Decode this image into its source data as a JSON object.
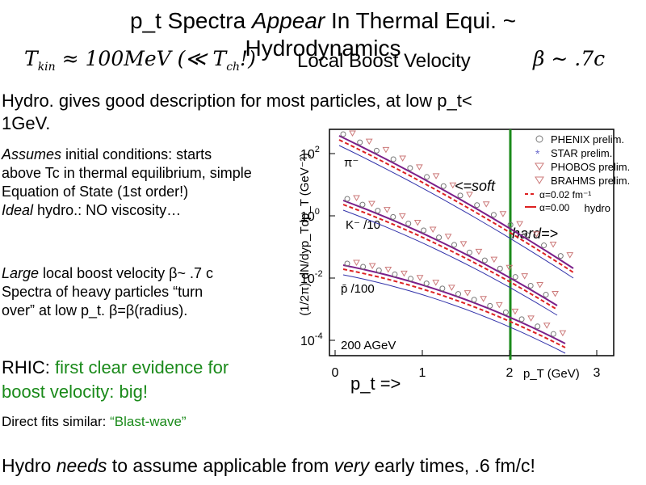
{
  "title": {
    "line1_a": "p_t Spectra ",
    "line1_em": "Appear",
    "line1_b": " In Thermal Equi. ~",
    "line2": "Hydrodynamics"
  },
  "formula": {
    "t1": "T",
    "t1_sub": "kin",
    "mid": " ≈ 100MeV (≪ ",
    "t2": "T",
    "t2_sub": "ch",
    "close": "!)"
  },
  "boost": {
    "text": "Local Boost Velocity",
    "beta": "β ∼ .7c"
  },
  "intro": [
    "Hydro. gives good description for most particles, at low p_t<",
    "1GeV."
  ],
  "assumptions": [
    {
      "em": "Assumes",
      "text": " initial conditions: starts"
    },
    {
      "text": "above Tc in thermal equilibrium, simple"
    },
    {
      "text": "Equation of State (1st order!)"
    },
    {
      "em": "Ideal",
      "text": " hydro.: NO viscosity…"
    }
  ],
  "boost_note": [
    {
      "em": "Large",
      "text": " local boost velocity β~ .7 c"
    },
    {
      "text": "Spectra of heavy particles “turn"
    },
    {
      "text": "over” at low p_t.  β=β(radius)."
    }
  ],
  "rhic": {
    "lead": "RHIC:",
    "text": " first clear evidence for",
    "line2": "boost velocity: big!"
  },
  "direct_fits": {
    "text": "Direct fits similar: ",
    "quote": "“Blast-wave”"
  },
  "footer": {
    "a": "Hydro ",
    "em1": "needs",
    "b": " to assume applicable from ",
    "em2": "very",
    "c": " early times, .6 fm/c!"
  },
  "figure": {
    "y_label": "(1/2π) dN/dyp_Tdp_T (GeV⁻²)",
    "x_label": "p_T (GeV)",
    "xticks": [
      0,
      1,
      2,
      3
    ],
    "yticks": [
      {
        "base": "10",
        "exp": "2"
      },
      {
        "base": "10",
        "exp": "0"
      },
      {
        "base": "10",
        "exp": "-2"
      },
      {
        "base": "10",
        "exp": "-4"
      }
    ],
    "particles": [
      "π⁻",
      "K⁻ /10",
      "p̄ /100"
    ],
    "energy": "200 AGeV",
    "legend": [
      "PHENIX prelim.",
      "STAR prelim.",
      "PHOBOS prelim.",
      "BRAHMS prelim.",
      "α=0.02 fm⁻¹",
      "α=0.00",
      "hydro"
    ],
    "soft": "<=soft",
    "hard": "hard=>",
    "pt": "p_t =>"
  }
}
